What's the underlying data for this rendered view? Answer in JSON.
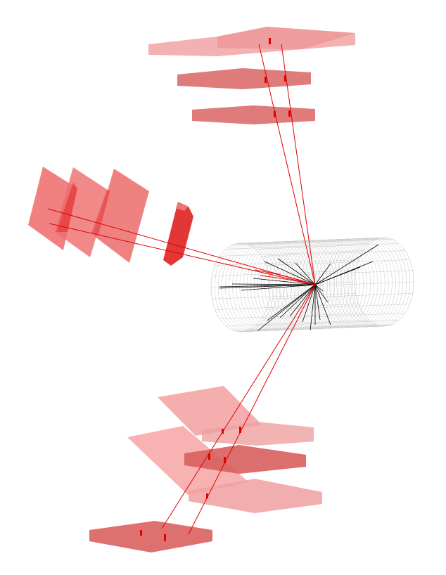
{
  "scene": {
    "description_name": "particle-collision-event-display",
    "colors": {
      "background": "#ffffff",
      "chamber_light": "#f2a3a3",
      "chamber_mid": "#e97f7f",
      "chamber_dark": "#d85c5c",
      "chamber_deep": "#ee3a3a",
      "muon_track": "#e00000",
      "hit": "#e00000",
      "inner_track": "#000000",
      "detector_mesh": "#c8c8c8"
    }
  }
}
